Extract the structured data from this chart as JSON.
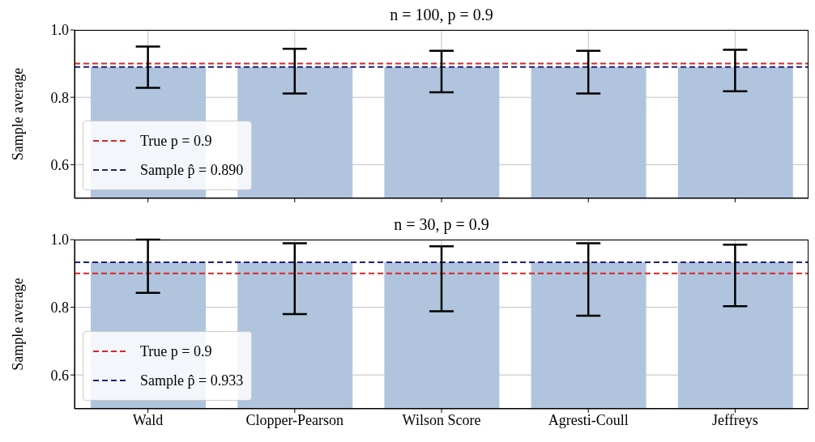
{
  "chart_data": [
    {
      "type": "bar",
      "title": "n = 100,  p = 0.9",
      "ylabel": "Sample average",
      "categories": [
        null,
        null,
        null,
        null,
        null
      ],
      "values": [
        0.89,
        0.89,
        0.89,
        0.89,
        0.89
      ],
      "color": "#b0c4de",
      "errors": [
        [
          0.828,
          0.951
        ],
        [
          0.811,
          0.944
        ],
        [
          0.815,
          0.938
        ],
        [
          0.811,
          0.938
        ],
        [
          0.818,
          0.941
        ]
      ],
      "ylim": [
        0.5,
        1.0
      ],
      "yticks": [
        {
          "value": 0.6,
          "label": "0.6"
        },
        {
          "value": 0.8,
          "label": "0.8"
        },
        {
          "value": 1.0,
          "label": "1.0"
        }
      ],
      "ref_lines": [
        {
          "axis": "y",
          "value": 0.9,
          "label": "True p = 0.9",
          "color": "#d62728",
          "line_style": "dashed"
        },
        {
          "axis": "y",
          "value": 0.89,
          "label": "Sample p̂ = 0.890",
          "color": "#1f1f7a",
          "line_style": "dashed"
        }
      ],
      "legend": "bottom left",
      "grid": true,
      "tick_labels": "y"
    },
    {
      "type": "bar",
      "title": "n = 30,  p = 0.9",
      "ylabel": "Sample average",
      "categories": [
        "Wald",
        "Clopper-Pearson",
        "Wilson Score",
        "Agresti-Coull",
        "Jeffreys"
      ],
      "values": [
        0.933,
        0.933,
        0.933,
        0.933,
        0.933
      ],
      "color": "#b0c4de",
      "errors": [
        [
          0.843,
          1.0
        ],
        [
          0.78,
          0.989
        ],
        [
          0.788,
          0.98
        ],
        [
          0.775,
          0.989
        ],
        [
          0.803,
          0.985
        ]
      ],
      "ylim": [
        0.5,
        1.0
      ],
      "yticks": [
        {
          "value": 0.6,
          "label": "0.6"
        },
        {
          "value": 0.8,
          "label": "0.8"
        },
        {
          "value": 1.0,
          "label": "1.0"
        }
      ],
      "ref_lines": [
        {
          "axis": "y",
          "value": 0.9,
          "label": "True p = 0.9",
          "color": "#d62728",
          "line_style": "dashed"
        },
        {
          "axis": "y",
          "value": 0.933,
          "label": "Sample p̂ = 0.933",
          "color": "#1f1f7a",
          "line_style": "dashed"
        }
      ],
      "legend": "bottom left",
      "grid": true
    }
  ]
}
